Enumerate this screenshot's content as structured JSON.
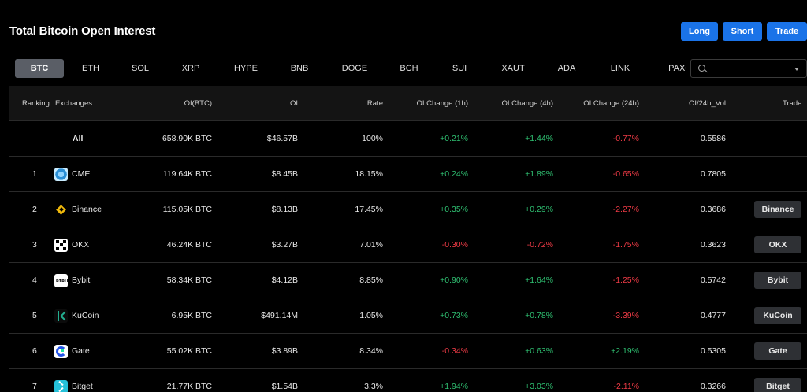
{
  "header": {
    "title": "Total Bitcoin Open Interest",
    "buttons": {
      "long": "Long",
      "short": "Short",
      "trade": "Trade"
    }
  },
  "tabs": [
    "BTC",
    "ETH",
    "SOL",
    "XRP",
    "HYPE",
    "BNB",
    "DOGE",
    "BCH",
    "SUI",
    "XAUT",
    "ADA",
    "LINK",
    "PAXG"
  ],
  "active_tab": "BTC",
  "search": {
    "placeholder": ""
  },
  "table": {
    "columns": [
      "Ranking",
      "Exchanges",
      "OI(BTC)",
      "OI",
      "Rate",
      "OI Change (1h)",
      "OI Change (4h)",
      "OI Change (24h)",
      "OI/24h_Vol",
      "Trade"
    ],
    "rows": [
      {
        "rank": "",
        "exchange": "All",
        "oi_btc": "658.90K BTC",
        "oi": "$46.57B",
        "rate": "100%",
        "c1h": "+0.21%",
        "c4h": "+1.44%",
        "c24h": "-0.77%",
        "vol": "0.5586",
        "trade": ""
      },
      {
        "rank": "1",
        "exchange": "CME",
        "logo": "cme-logo-icon",
        "oi_btc": "119.64K BTC",
        "oi": "$8.45B",
        "rate": "18.15%",
        "c1h": "+0.24%",
        "c4h": "+1.89%",
        "c24h": "-0.65%",
        "vol": "0.7805",
        "trade": ""
      },
      {
        "rank": "2",
        "exchange": "Binance",
        "logo": "binance-logo-icon",
        "oi_btc": "115.05K BTC",
        "oi": "$8.13B",
        "rate": "17.45%",
        "c1h": "+0.35%",
        "c4h": "+0.29%",
        "c24h": "-2.27%",
        "vol": "0.3686",
        "trade": "Binance"
      },
      {
        "rank": "3",
        "exchange": "OKX",
        "logo": "okx-logo-icon",
        "oi_btc": "46.24K BTC",
        "oi": "$3.27B",
        "rate": "7.01%",
        "c1h": "-0.30%",
        "c4h": "-0.72%",
        "c24h": "-1.75%",
        "vol": "0.3623",
        "trade": "OKX"
      },
      {
        "rank": "4",
        "exchange": "Bybit",
        "logo": "bybit-logo-icon",
        "oi_btc": "58.34K BTC",
        "oi": "$4.12B",
        "rate": "8.85%",
        "c1h": "+0.90%",
        "c4h": "+1.64%",
        "c24h": "-1.25%",
        "vol": "0.5742",
        "trade": "Bybit"
      },
      {
        "rank": "5",
        "exchange": "KuCoin",
        "logo": "kucoin-logo-icon",
        "oi_btc": "6.95K BTC",
        "oi": "$491.14M",
        "rate": "1.05%",
        "c1h": "+0.73%",
        "c4h": "+0.78%",
        "c24h": "-3.39%",
        "vol": "0.4777",
        "trade": "KuCoin"
      },
      {
        "rank": "6",
        "exchange": "Gate",
        "logo": "gate-logo-icon",
        "oi_btc": "55.02K BTC",
        "oi": "$3.89B",
        "rate": "8.34%",
        "c1h": "-0.34%",
        "c4h": "+0.63%",
        "c24h": "+2.19%",
        "vol": "0.5305",
        "trade": "Gate"
      },
      {
        "rank": "7",
        "exchange": "Bitget",
        "logo": "bitget-logo-icon",
        "oi_btc": "21.77K BTC",
        "oi": "$1.54B",
        "rate": "3.3%",
        "c1h": "+1.94%",
        "c4h": "+3.03%",
        "c24h": "-2.11%",
        "vol": "0.3266",
        "trade": "Bitget"
      }
    ]
  },
  "colors": {
    "accent": "#1a73e8",
    "up": "#2fbf71",
    "down": "#ef3b46",
    "background": "#000000"
  }
}
